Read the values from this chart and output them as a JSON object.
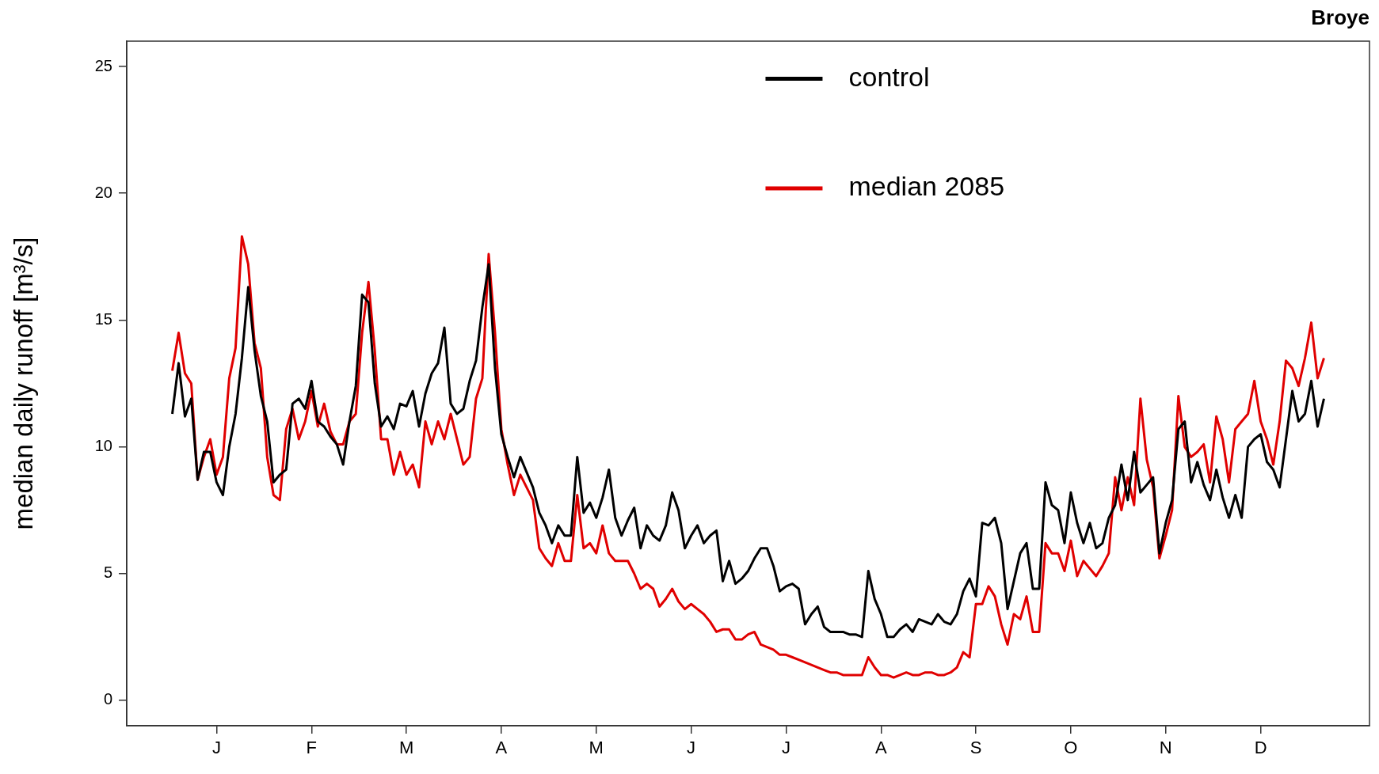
{
  "chart_data": {
    "type": "line",
    "title": "Broye",
    "ylabel": "median daily runoff [m³/s]",
    "categories": [
      null,
      null,
      null,
      null,
      null,
      null,
      null,
      "J",
      null,
      null,
      null,
      null,
      null,
      null,
      null,
      null,
      null,
      null,
      null,
      null,
      null,
      null,
      "F",
      null,
      null,
      null,
      null,
      null,
      null,
      null,
      null,
      null,
      null,
      null,
      null,
      null,
      null,
      "M",
      null,
      null,
      null,
      null,
      null,
      null,
      null,
      null,
      null,
      null,
      null,
      null,
      null,
      null,
      "A",
      null,
      null,
      null,
      null,
      null,
      null,
      null,
      null,
      null,
      null,
      null,
      null,
      null,
      null,
      "M",
      null,
      null,
      null,
      null,
      null,
      null,
      null,
      null,
      null,
      null,
      null,
      null,
      null,
      null,
      "J",
      null,
      null,
      null,
      null,
      null,
      null,
      null,
      null,
      null,
      null,
      null,
      null,
      null,
      null,
      "J",
      null,
      null,
      null,
      null,
      null,
      null,
      null,
      null,
      null,
      null,
      null,
      null,
      null,
      null,
      "A",
      null,
      null,
      null,
      null,
      null,
      null,
      null,
      null,
      null,
      null,
      null,
      null,
      null,
      null,
      "S",
      null,
      null,
      null,
      null,
      null,
      null,
      null,
      null,
      null,
      null,
      null,
      null,
      null,
      null,
      "O",
      null,
      null,
      null,
      null,
      null,
      null,
      null,
      null,
      null,
      null,
      null,
      null,
      null,
      null,
      "N",
      null,
      null,
      null,
      null,
      null,
      null,
      null,
      null,
      null,
      null,
      null,
      null,
      null,
      null,
      "D",
      null,
      null,
      null,
      null,
      null,
      null,
      null,
      null,
      null,
      null
    ],
    "ylim": [
      -1,
      26
    ],
    "yticks": [
      0,
      5,
      10,
      15,
      20,
      25
    ],
    "legend": "top",
    "marker": "none",
    "line_style": "solid",
    "series": [
      {
        "name": "control",
        "color": "#000000",
        "values": [
          11.3,
          13.3,
          11.2,
          11.9,
          8.7,
          9.8,
          9.8,
          8.6,
          8.1,
          10.0,
          11.3,
          13.5,
          16.3,
          13.8,
          12.0,
          11.0,
          8.6,
          8.9,
          9.1,
          11.7,
          11.9,
          11.5,
          12.6,
          11.0,
          10.8,
          10.4,
          10.1,
          9.3,
          11.0,
          12.4,
          16.0,
          15.7,
          12.5,
          10.8,
          11.2,
          10.7,
          11.7,
          11.6,
          12.2,
          10.8,
          12.1,
          12.9,
          13.3,
          14.7,
          11.7,
          11.3,
          11.5,
          12.6,
          13.4,
          15.5,
          17.2,
          13.1,
          10.5,
          9.6,
          8.8,
          9.6,
          9.0,
          8.4,
          7.4,
          6.9,
          6.2,
          6.9,
          6.5,
          6.5,
          9.6,
          7.4,
          7.8,
          7.2,
          8.0,
          9.1,
          7.2,
          6.5,
          7.1,
          7.6,
          6.0,
          6.9,
          6.5,
          6.3,
          6.9,
          8.2,
          7.5,
          6.0,
          6.5,
          6.9,
          6.2,
          6.5,
          6.7,
          4.7,
          5.5,
          4.6,
          4.8,
          5.1,
          5.6,
          6.0,
          6.0,
          5.3,
          4.3,
          4.5,
          4.6,
          4.4,
          3.0,
          3.4,
          3.7,
          2.9,
          2.7,
          2.7,
          2.7,
          2.6,
          2.6,
          2.5,
          5.1,
          4.0,
          3.4,
          2.5,
          2.5,
          2.8,
          3.0,
          2.7,
          3.2,
          3.1,
          3.0,
          3.4,
          3.1,
          3.0,
          3.4,
          4.3,
          4.8,
          4.1,
          7.0,
          6.9,
          7.2,
          6.2,
          3.6,
          4.7,
          5.8,
          6.2,
          4.4,
          4.4,
          8.6,
          7.7,
          7.5,
          6.2,
          8.2,
          7.0,
          6.2,
          7.0,
          6.0,
          6.2,
          7.2,
          7.7,
          9.3,
          7.9,
          9.8,
          8.2,
          8.5,
          8.8,
          5.8,
          7.0,
          7.9,
          10.7,
          11.0,
          8.6,
          9.4,
          8.5,
          7.9,
          9.1,
          8.0,
          7.2,
          8.1,
          7.2,
          10.0,
          10.3,
          10.5,
          9.4,
          9.1,
          8.4,
          10.3,
          12.2,
          11.0,
          11.3,
          12.6,
          10.8,
          11.9
        ]
      },
      {
        "name": "median 2085",
        "color": "#e00000",
        "values": [
          13.0,
          14.5,
          12.9,
          12.5,
          8.7,
          9.6,
          10.3,
          8.9,
          9.6,
          12.7,
          13.9,
          18.3,
          17.2,
          14.1,
          13.1,
          9.6,
          8.1,
          7.9,
          10.7,
          11.5,
          10.3,
          11.0,
          12.2,
          10.8,
          11.7,
          10.6,
          10.1,
          10.1,
          11.0,
          11.3,
          14.5,
          16.5,
          13.8,
          10.3,
          10.3,
          8.9,
          9.8,
          8.9,
          9.3,
          8.4,
          11.0,
          10.1,
          11.0,
          10.3,
          11.3,
          10.3,
          9.3,
          9.6,
          11.9,
          12.7,
          17.6,
          14.5,
          10.7,
          9.3,
          8.1,
          8.9,
          8.4,
          7.9,
          6.0,
          5.6,
          5.3,
          6.2,
          5.5,
          5.5,
          8.1,
          6.0,
          6.2,
          5.8,
          6.9,
          5.8,
          5.5,
          5.5,
          5.5,
          5.0,
          4.4,
          4.6,
          4.4,
          3.7,
          4.0,
          4.4,
          3.9,
          3.6,
          3.8,
          3.6,
          3.4,
          3.1,
          2.7,
          2.8,
          2.8,
          2.4,
          2.4,
          2.6,
          2.7,
          2.2,
          2.1,
          2.0,
          1.8,
          1.8,
          1.7,
          1.6,
          1.5,
          1.4,
          1.3,
          1.2,
          1.1,
          1.1,
          1.0,
          1.0,
          1.0,
          1.0,
          1.7,
          1.3,
          1.0,
          1.0,
          0.9,
          1.0,
          1.1,
          1.0,
          1.0,
          1.1,
          1.1,
          1.0,
          1.0,
          1.1,
          1.3,
          1.9,
          1.7,
          3.8,
          3.8,
          4.5,
          4.1,
          3.0,
          2.2,
          3.4,
          3.2,
          4.1,
          2.7,
          2.7,
          6.2,
          5.8,
          5.8,
          5.1,
          6.3,
          4.9,
          5.5,
          5.2,
          4.9,
          5.3,
          5.8,
          8.8,
          7.5,
          8.8,
          7.7,
          11.9,
          9.5,
          8.4,
          5.6,
          6.5,
          7.5,
          12.0,
          10.0,
          9.6,
          9.8,
          10.1,
          8.6,
          11.2,
          10.3,
          8.6,
          10.7,
          11.0,
          11.3,
          12.6,
          11.0,
          10.3,
          9.3,
          11.0,
          13.4,
          13.1,
          12.4,
          13.5,
          14.9,
          12.7,
          13.5
        ]
      }
    ]
  }
}
